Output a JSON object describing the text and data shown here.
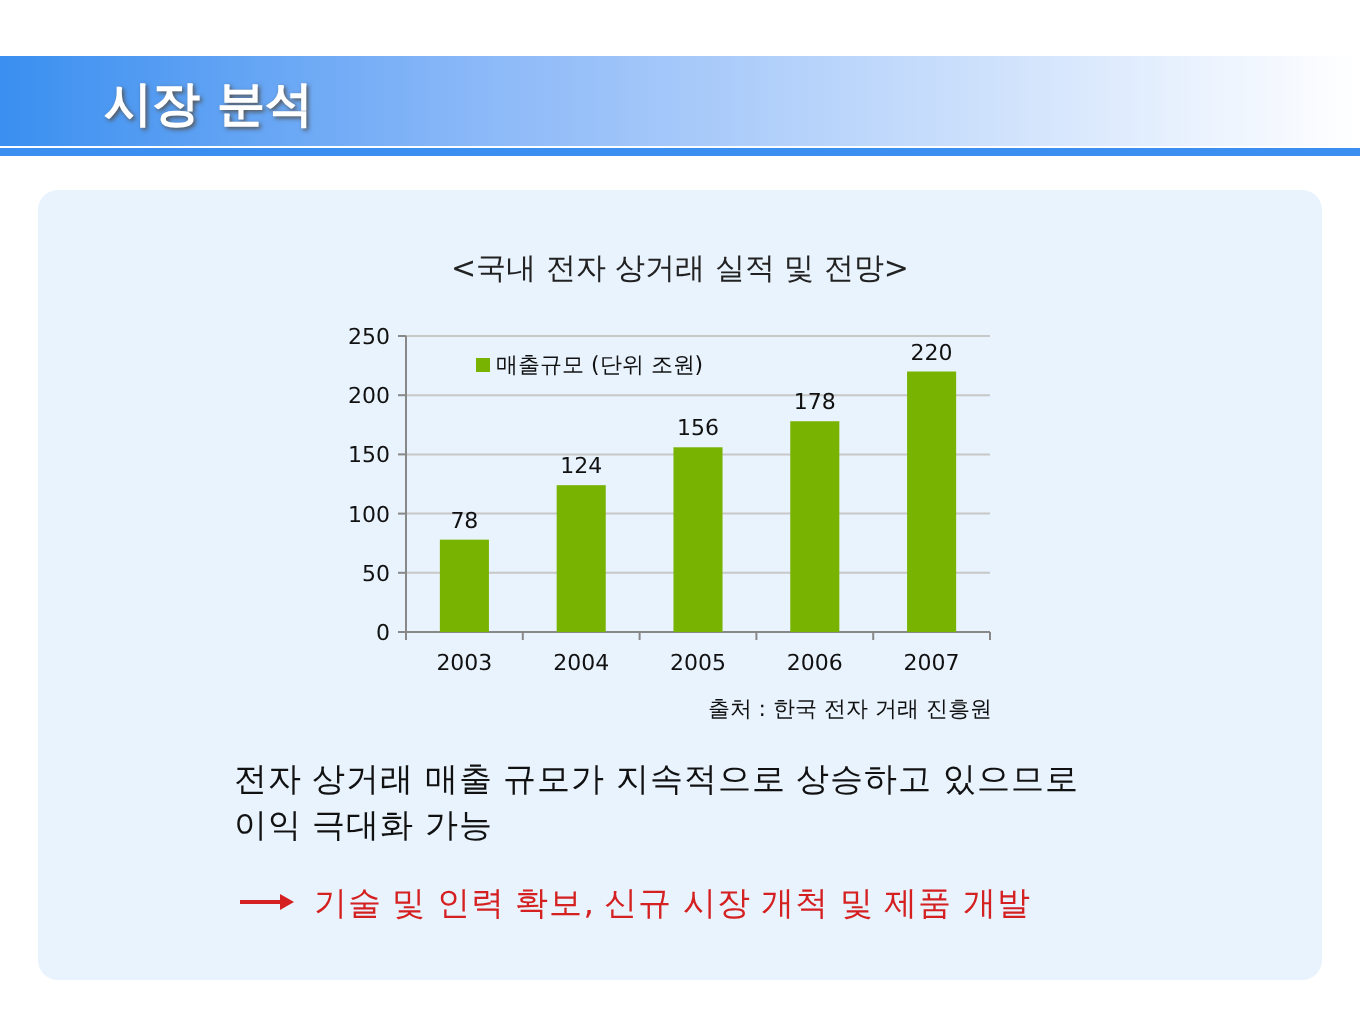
{
  "chart_data": {
    "type": "bar",
    "title": "시장 분석",
    "subtitle": "<국내 전자 상거래 실적 및 전망>",
    "categories": [
      "2003",
      "2004",
      "2005",
      "2006",
      "2007"
    ],
    "series": [
      {
        "name": "매출규모 (단위 조원)",
        "color": "#77b300",
        "values": [
          78,
          124,
          156,
          178,
          220
        ]
      }
    ],
    "ylim": [
      0,
      250
    ],
    "yticks": [
      0,
      50,
      100,
      150,
      200,
      250
    ],
    "grid": "y",
    "legend": "top left",
    "data_labels": true,
    "annotations": [
      "출처 : 한국 전자 거래 진흥원",
      "전자 상거래 매출 규모가 지속적으로 상승하고 있으므로 이익 극대화 가능",
      "기술 및 인력 확보, 신규 시장 개척 및 제품 개발"
    ]
  }
}
